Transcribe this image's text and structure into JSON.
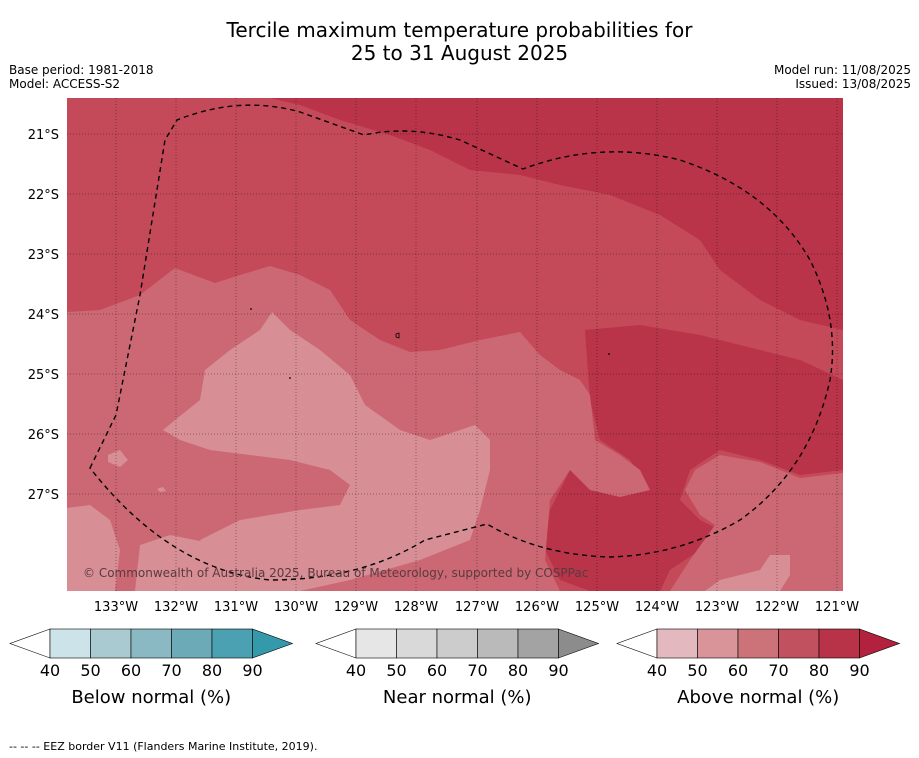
{
  "title": {
    "line1": "Tercile maximum temperature probabilities for",
    "line2": "25 to 31 August 2025"
  },
  "meta": {
    "base_period": "Base period: 1981-2018",
    "model": "Model: ACCESS-S2",
    "model_run": "Model run: 11/08/2025",
    "issued": "Issued: 13/08/2025"
  },
  "map": {
    "copyright": "© Commonwealth of Australia 2025, Bureau of Meteorology, supported by COSPPac",
    "lat_labels": [
      "21°S",
      "22°S",
      "23°S",
      "24°S",
      "25°S",
      "26°S",
      "27°S"
    ],
    "lon_labels": [
      "133°W",
      "132°W",
      "131°W",
      "130°W",
      "129°W",
      "128°W",
      "127°W",
      "126°W",
      "125°W",
      "124°W",
      "123°W",
      "122°W",
      "121°W"
    ],
    "eez_border": "dashed black line"
  },
  "colorbars": [
    {
      "title": "Below normal (%)",
      "ticks": [
        "40",
        "50",
        "60",
        "70",
        "80",
        "90"
      ],
      "colors": [
        "#cce3e9",
        "#a8cad0",
        "#8ab9c4",
        "#6daab8",
        "#4ba1b2",
        "#3499ab"
      ]
    },
    {
      "title": "Near normal (%)",
      "ticks": [
        "40",
        "50",
        "60",
        "70",
        "80",
        "90"
      ],
      "colors": [
        "#e6e6e6",
        "#d9d9d9",
        "#cccccc",
        "#bababa",
        "#a3a3a3",
        "#8c8c8c"
      ]
    },
    {
      "title": "Above normal (%)",
      "ticks": [
        "40",
        "50",
        "60",
        "70",
        "80",
        "90"
      ],
      "colors": [
        "#e3b8be",
        "#d89499",
        "#cc7279",
        "#c1515e",
        "#b83348",
        "#b2213d"
      ]
    }
  ],
  "footer": "--  --  -- EEZ border V11 (Flanders Marine Institute, 2019)."
}
